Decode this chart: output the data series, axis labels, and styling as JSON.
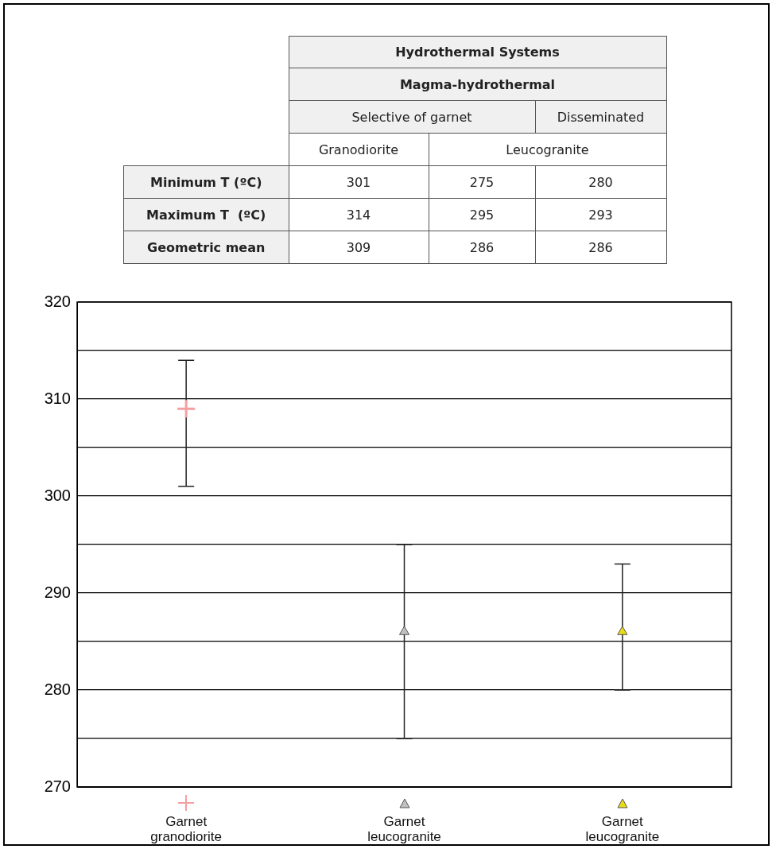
{
  "chart_data": {
    "type": "scatter",
    "categories": [
      null,
      null,
      null
    ],
    "series": [
      {
        "name": "Garnet granodiorite",
        "color": "#f4a0a0",
        "marker": "cross",
        "values": [
          309,
          null,
          null
        ],
        "errors": [
          [
            301,
            314
          ],
          null,
          null
        ]
      },
      {
        "name": "Garnet leucogranite",
        "color": "#c0c0c0",
        "marker": "triangle",
        "values": [
          null,
          286,
          null
        ],
        "errors": [
          null,
          [
            275,
            295
          ],
          null
        ]
      },
      {
        "name": "Garnet leucogranite",
        "color": "#e8dc1a",
        "marker": "triangle",
        "values": [
          null,
          null,
          286
        ],
        "errors": [
          null,
          null,
          [
            280,
            293
          ]
        ]
      }
    ],
    "ylim": [
      270,
      320
    ],
    "yticks": [
      270,
      {
        "value": 275,
        "label": null
      },
      280,
      {
        "value": 285,
        "label": null
      },
      290,
      {
        "value": 295,
        "label": null
      },
      300,
      {
        "value": 305,
        "label": null
      },
      310,
      {
        "value": 315,
        "label": null
      },
      320
    ],
    "grid": "y",
    "legend": "bottom",
    "annotations": [
      "Hydrothermal Systems",
      "Magma-hydrothermal",
      "Selective of garnet",
      "Disseminated",
      "Granodiorite",
      "Leucogranite",
      "Minimum T (ºC)",
      "Maximum T  (ºC)",
      "Geometric mean",
      "301",
      "275",
      "280",
      "314",
      "295",
      "293",
      "309",
      "286",
      "286"
    ]
  }
}
